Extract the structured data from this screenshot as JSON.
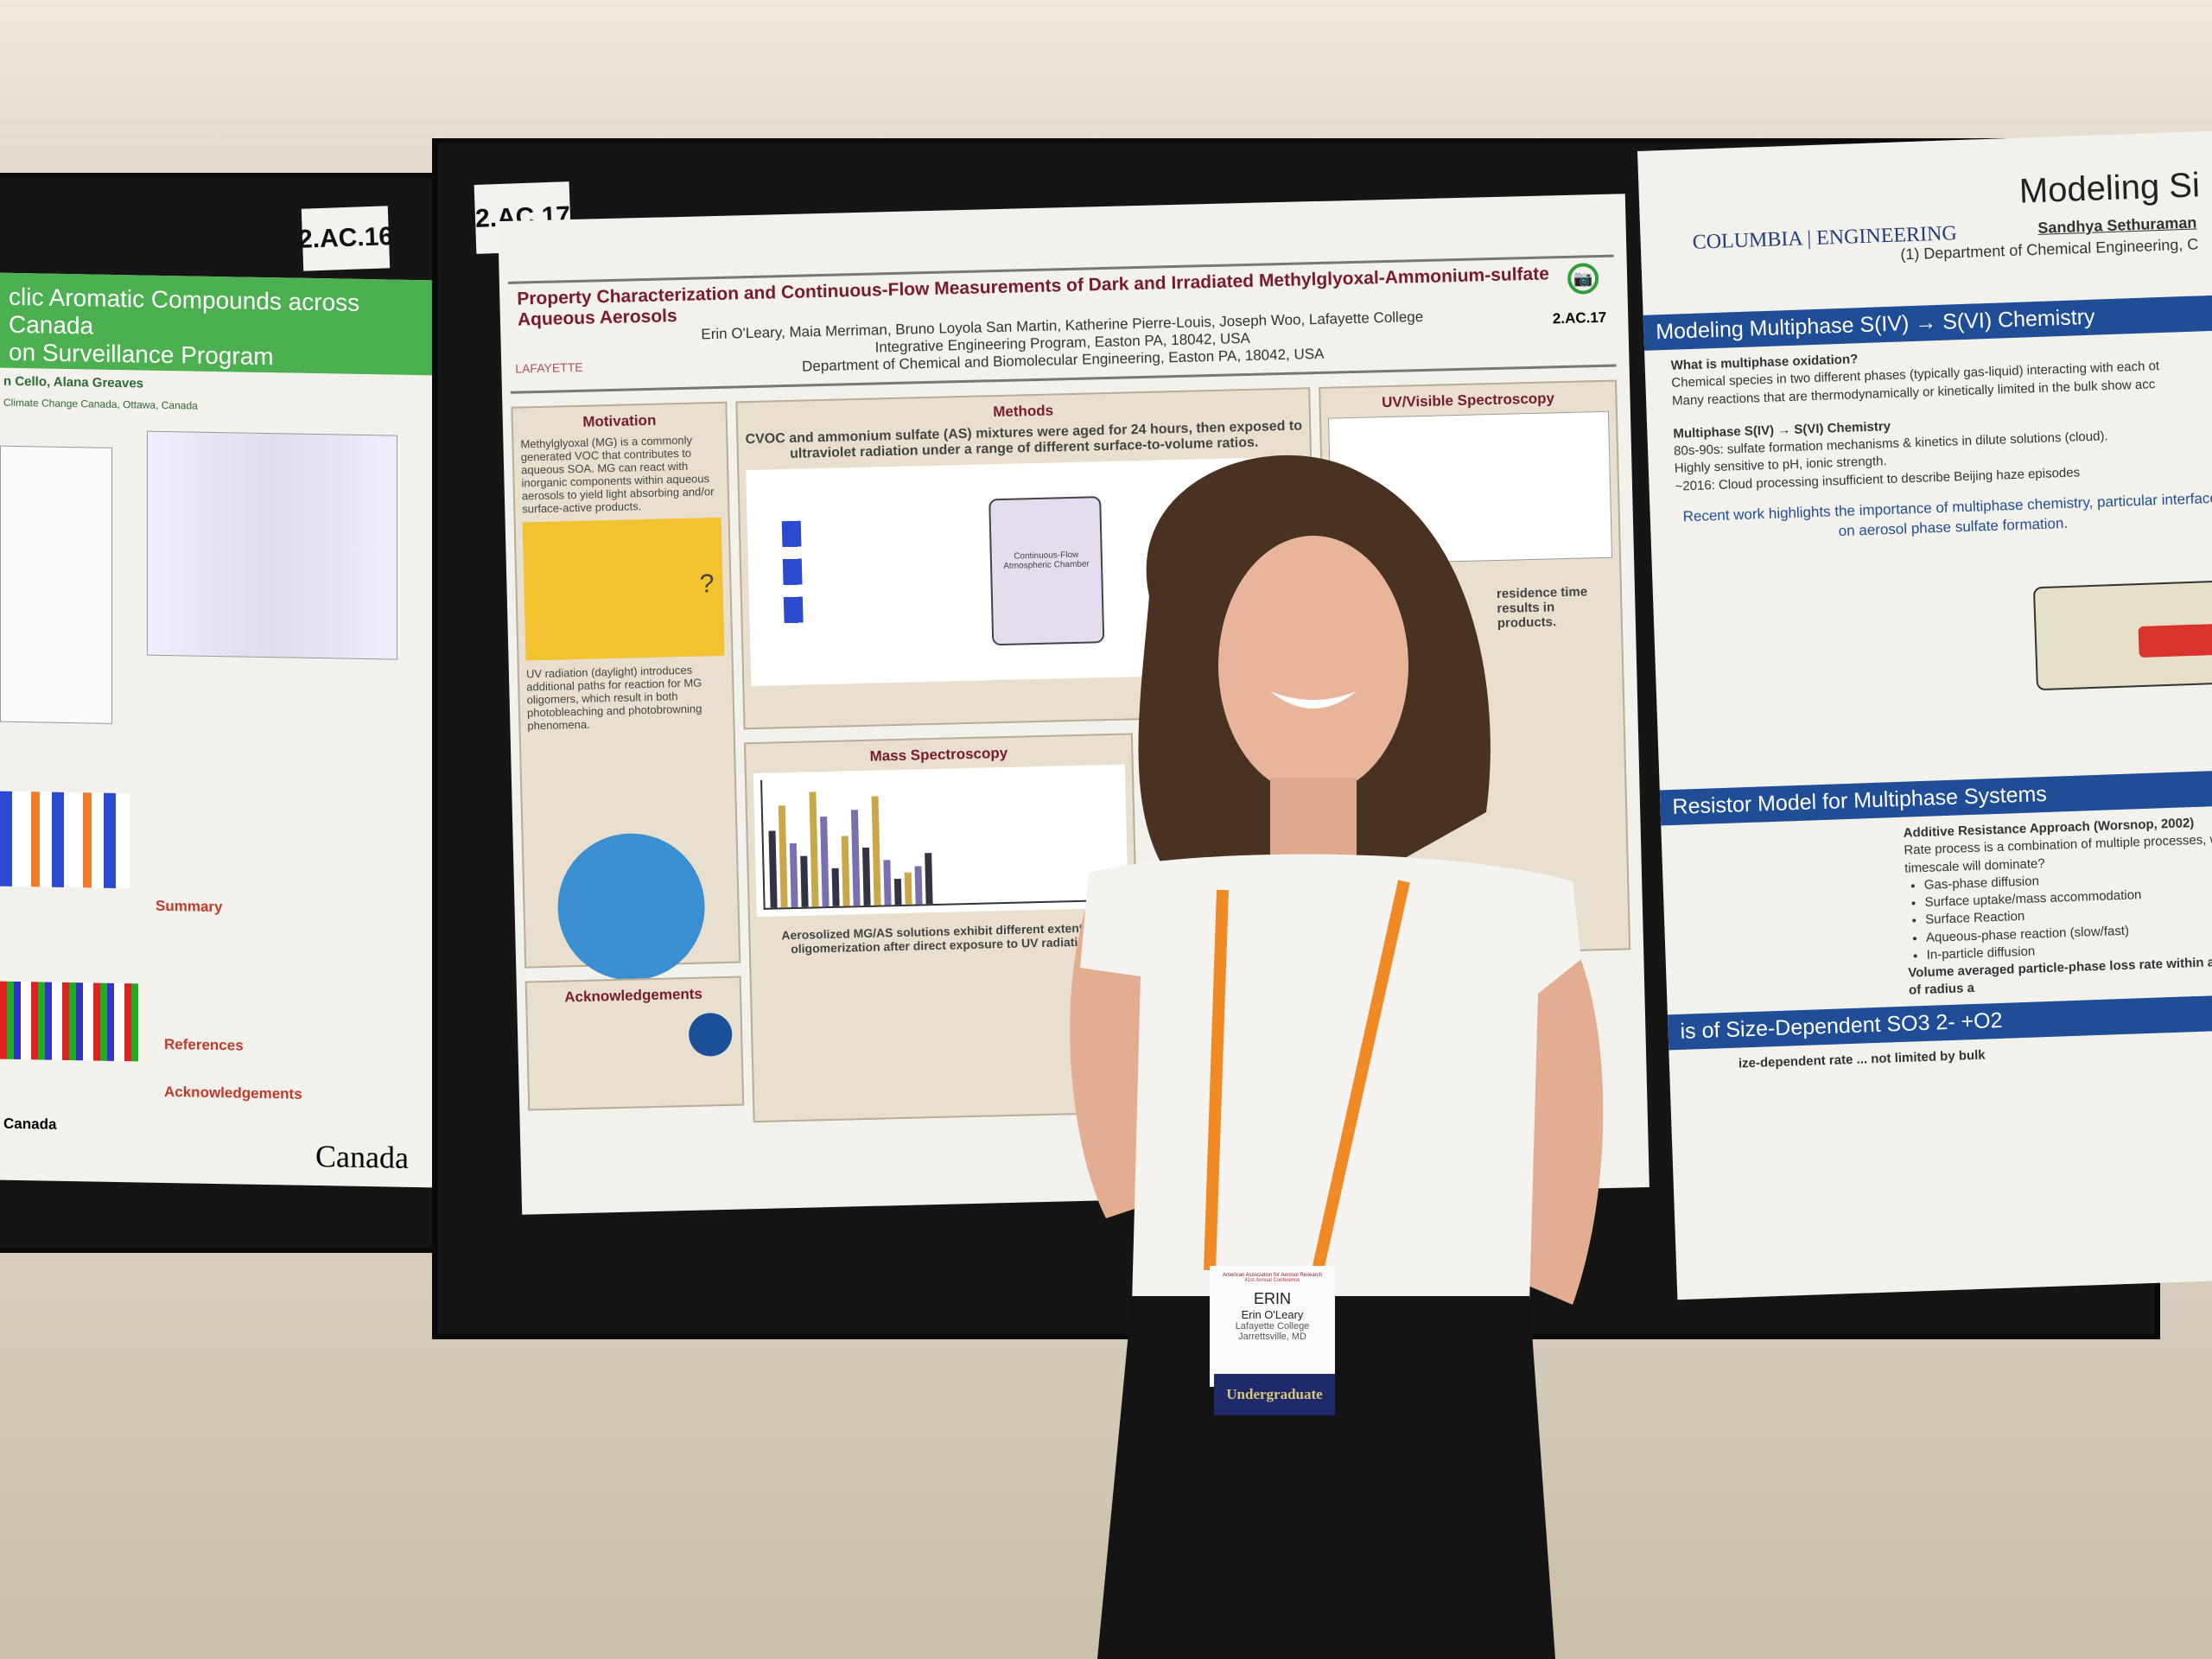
{
  "left_poster": {
    "board_label": "2.AC.16",
    "title_line1": "clic Aromatic Compounds across Canada",
    "title_line2": "on Surveillance Program",
    "authors": "n Cello, Alana Greaves",
    "affiliation": "Climate Change Canada, Ottawa, Canada",
    "section_summary": "Summary",
    "section_references": "References",
    "section_acknowledgements": "Acknowledgements",
    "footer_left": "Canada",
    "logo": "Canada"
  },
  "center_poster": {
    "board_label": "2.AC.17",
    "title": "Property Characterization and Continuous-Flow Measurements of Dark and Irradiated Methylglyoxal-Ammonium-sulfate Aqueous Aerosols",
    "authors": "Erin O'Leary, Maia Merriman, Bruno Loyola San Martin, Katherine Pierre-Louis, Joseph Woo, Lafayette College",
    "affiliation1": "Integrative Engineering Program, Easton PA, 18042, USA",
    "affiliation2": "Department of Chemical and Biomolecular Engineering, Easton PA, 18042, USA",
    "poster_id": "2.AC.17",
    "logo": "LAFAYETTE",
    "sections": {
      "motivation": "Motivation",
      "motivation_text": "Methylglyoxal (MG) is a commonly generated VOC that contributes to aqueous SOA. MG can react with inorganic components within aqueous aerosols to yield light absorbing and/or surface-active products.",
      "motivation_text2": "UV radiation (daylight) introduces additional paths for reaction for MG oligomers, which result in both photobleaching and photobrowning phenomena.",
      "methods": "Methods",
      "methods_text": "CVOC and ammonium sulfate (AS) mixtures were aged for 24 hours, then exposed to ultraviolet radiation under a range of different surface-to-volume ratios.",
      "chamber_label": "Continuous-Flow Atmospheric Chamber",
      "uv_vis": "UV/Visible Spectroscopy",
      "uv_vis_text": "residence time results in products.",
      "mass_spec": "Mass Spectroscopy",
      "mass_spec_text": "Aerosolized MG/AS solutions exhibit different extents of oligomerization after direct exposure to UV radiation.",
      "acknowledgements": "Acknowledgements",
      "question_mark": "?"
    }
  },
  "right_poster": {
    "title": "Modeling Si",
    "author": "Sandhya Sethuraman",
    "affiliation": "(1) Department of Chemical Engineering, C",
    "logo": "COLUMBIA | ENGINEERING",
    "header1": "Modeling Multiphase S(IV) → S(VI) Chemistry",
    "q1": "What is multiphase oxidation?",
    "b1": "Chemical species in two different phases (typically gas-liquid) interacting with each ot",
    "b2": "Many reactions that are thermodynamically or kinetically limited in the bulk show acc",
    "sub1": "Multiphase S(IV) → S(VI) Chemistry",
    "b3": "80s-90s: sulfate formation mechanisms & kinetics in dilute solutions (cloud).",
    "b4": "Highly sensitive to pH, ionic strength.",
    "b5": "~2016: Cloud processing insufficient to describe Beijing haze episodes",
    "highlight": "Recent work highlights the importance of multiphase chemistry, particular interface, on aerosol phase sulfate formation.",
    "header2": "Resistor Model for Multiphase Systems",
    "r1": "Additive Resistance Approach (Worsnop, 2002)",
    "r2": "Rate process is a combination of multiple processes, wh timescale will dominate?",
    "r_items": [
      "Gas-phase diffusion",
      "Surface uptake/mass accommodation",
      "Surface Reaction",
      "Aqueous-phase reaction (slow/fast)",
      "In-particle diffusion"
    ],
    "r3": "Volume averaged particle-phase loss rate within aerosol of radius a",
    "header3": "is of Size-Dependent SO3 2- +O2",
    "s1": "ize-dependent rate ... not limited by bulk"
  },
  "badge": {
    "org": "American Association for Aerosol Research",
    "conference": "41st Annual Conference",
    "nickname": "ERIN",
    "full_name": "Erin O'Leary",
    "institution": "Lafayette College",
    "location": "Jarrettsville, MD",
    "ribbon": "Undergraduate"
  },
  "colors": {
    "board": "#151515",
    "lafayette": "#7a1b2b",
    "columbia_blue": "#1f4e96",
    "lanyard": "#f08a24",
    "canada_green": "#4caf50"
  }
}
